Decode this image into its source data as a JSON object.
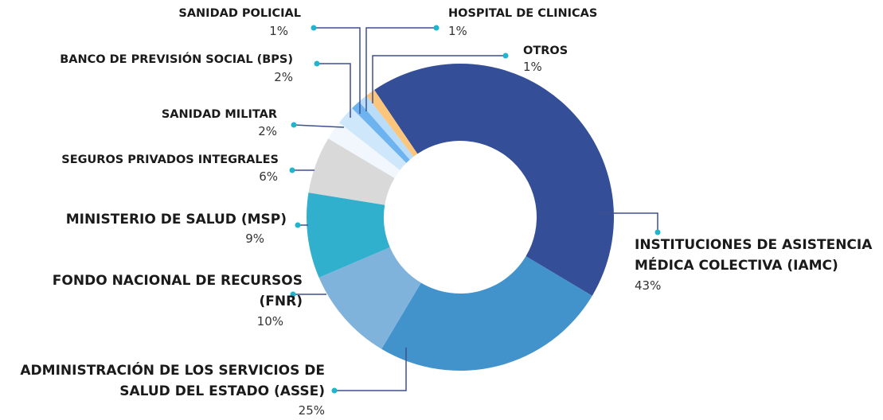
{
  "chart_data": {
    "type": "donut",
    "categories": [
      "INSTITUCIONES DE ASISTENCIA MÉDICA COLECTIVA (IAMC)",
      "ADMINISTRACIÓN DE LOS SERVICIOS DE SALUD DEL ESTADO (ASSE)",
      "FONDO NACIONAL DE RECURSOS (FNR)",
      "MINISTERIO DE SALUD (MSP)",
      "SEGUROS PRIVADOS INTEGRALES",
      "SANIDAD MILITAR",
      "BANCO DE PREVISIÓN SOCIAL (BPS)",
      "SANIDAD POLICIAL",
      "HOSPITAL DE CLINICAS",
      "OTROS"
    ],
    "values": [
      43,
      25,
      10,
      9,
      6,
      2,
      2,
      1,
      1,
      1
    ],
    "value_labels": [
      "43%",
      "25%",
      "10%",
      "9%",
      "6%",
      "2%",
      "2%",
      "1%",
      "1%",
      "1%"
    ],
    "colors": [
      "#344f97",
      "#4293cc",
      "#80b3dc",
      "#31b0ce",
      "#d9d9d9",
      "#f1f7fd",
      "#cfe7fb",
      "#6db3f0",
      "#b9dcf8",
      "#fbc67c"
    ]
  }
}
